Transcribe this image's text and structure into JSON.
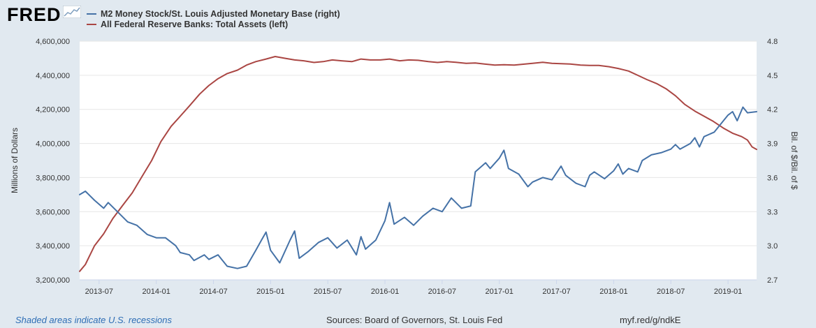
{
  "brand": {
    "logo_text": "FRED"
  },
  "legend": [
    {
      "label": "M2 Money Stock/St. Louis Adjusted Monetary Base (right)",
      "color": "#4572a7"
    },
    {
      "label": "All Federal Reserve Banks: Total Assets (left)",
      "color": "#aa4643"
    }
  ],
  "footer": {
    "recession_note": "Shaded areas indicate U.S. recessions",
    "sources": "Sources: Board of Governors, St. Louis Fed",
    "link": "myf.red/g/ndkE"
  },
  "chart_data": {
    "type": "line",
    "title": "",
    "ylabel_left": "Millions of Dollars",
    "ylabel_right": "Bil. of $/Bil. of $",
    "ylim_left": [
      3200000,
      4600000
    ],
    "ylim_right": [
      2.7,
      4.8
    ],
    "left_ticks": [
      "3,200,000",
      "3,400,000",
      "3,600,000",
      "3,800,000",
      "4,000,000",
      "4,200,000",
      "4,400,000",
      "4,600,000"
    ],
    "left_tick_values": [
      3200000,
      3400000,
      3600000,
      3800000,
      4000000,
      4200000,
      4400000,
      4600000
    ],
    "right_ticks": [
      "2.7",
      "3.0",
      "3.3",
      "3.6",
      "3.9",
      "4.2",
      "4.5",
      "4.8"
    ],
    "right_tick_values": [
      2.7,
      3.0,
      3.3,
      3.6,
      3.9,
      4.2,
      4.5,
      4.8
    ],
    "xlim": [
      2013.33,
      2019.25
    ],
    "x_ticks": [
      "2013-07",
      "2014-01",
      "2014-07",
      "2015-01",
      "2015-07",
      "2016-01",
      "2016-07",
      "2017-01",
      "2017-07",
      "2018-01",
      "2018-07",
      "2019-01"
    ],
    "x_tick_values": [
      2013.5,
      2014.0,
      2014.5,
      2015.0,
      2015.5,
      2016.0,
      2016.5,
      2017.0,
      2017.5,
      2018.0,
      2018.5,
      2019.0
    ],
    "series": [
      {
        "name": "All Federal Reserve Banks: Total Assets (left)",
        "axis": "left",
        "color": "#aa4643",
        "points": [
          [
            2013.33,
            3250000
          ],
          [
            2013.38,
            3290000
          ],
          [
            2013.46,
            3400000
          ],
          [
            2013.54,
            3470000
          ],
          [
            2013.62,
            3560000
          ],
          [
            2013.71,
            3640000
          ],
          [
            2013.79,
            3710000
          ],
          [
            2013.87,
            3800000
          ],
          [
            2013.96,
            3900000
          ],
          [
            2014.04,
            4010000
          ],
          [
            2014.13,
            4100000
          ],
          [
            2014.21,
            4160000
          ],
          [
            2014.29,
            4220000
          ],
          [
            2014.38,
            4290000
          ],
          [
            2014.46,
            4340000
          ],
          [
            2014.54,
            4380000
          ],
          [
            2014.62,
            4410000
          ],
          [
            2014.71,
            4430000
          ],
          [
            2014.79,
            4460000
          ],
          [
            2014.87,
            4480000
          ],
          [
            2014.96,
            4495000
          ],
          [
            2015.04,
            4510000
          ],
          [
            2015.12,
            4500000
          ],
          [
            2015.21,
            4490000
          ],
          [
            2015.29,
            4485000
          ],
          [
            2015.38,
            4475000
          ],
          [
            2015.46,
            4480000
          ],
          [
            2015.54,
            4490000
          ],
          [
            2015.62,
            4485000
          ],
          [
            2015.71,
            4480000
          ],
          [
            2015.79,
            4495000
          ],
          [
            2015.87,
            4490000
          ],
          [
            2015.96,
            4490000
          ],
          [
            2016.04,
            4495000
          ],
          [
            2016.13,
            4485000
          ],
          [
            2016.21,
            4490000
          ],
          [
            2016.29,
            4488000
          ],
          [
            2016.38,
            4480000
          ],
          [
            2016.46,
            4475000
          ],
          [
            2016.54,
            4480000
          ],
          [
            2016.62,
            4476000
          ],
          [
            2016.71,
            4470000
          ],
          [
            2016.79,
            4472000
          ],
          [
            2016.87,
            4466000
          ],
          [
            2016.96,
            4460000
          ],
          [
            2017.04,
            4462000
          ],
          [
            2017.13,
            4460000
          ],
          [
            2017.21,
            4465000
          ],
          [
            2017.29,
            4470000
          ],
          [
            2017.38,
            4476000
          ],
          [
            2017.46,
            4470000
          ],
          [
            2017.54,
            4468000
          ],
          [
            2017.62,
            4466000
          ],
          [
            2017.71,
            4460000
          ],
          [
            2017.79,
            4458000
          ],
          [
            2017.87,
            4458000
          ],
          [
            2017.96,
            4450000
          ],
          [
            2018.04,
            4440000
          ],
          [
            2018.13,
            4425000
          ],
          [
            2018.21,
            4400000
          ],
          [
            2018.29,
            4375000
          ],
          [
            2018.38,
            4350000
          ],
          [
            2018.46,
            4320000
          ],
          [
            2018.54,
            4280000
          ],
          [
            2018.62,
            4230000
          ],
          [
            2018.71,
            4190000
          ],
          [
            2018.79,
            4160000
          ],
          [
            2018.87,
            4130000
          ],
          [
            2018.96,
            4090000
          ],
          [
            2019.04,
            4060000
          ],
          [
            2019.12,
            4040000
          ],
          [
            2019.17,
            4020000
          ],
          [
            2019.21,
            3980000
          ],
          [
            2019.25,
            3965000
          ]
        ]
      },
      {
        "name": "M2 Money Stock/St. Louis Adjusted Monetary Base (right)",
        "axis": "right",
        "color": "#4572a7",
        "points": [
          [
            2013.33,
            3.45
          ],
          [
            2013.38,
            3.48
          ],
          [
            2013.46,
            3.4
          ],
          [
            2013.54,
            3.33
          ],
          [
            2013.58,
            3.38
          ],
          [
            2013.67,
            3.29
          ],
          [
            2013.75,
            3.21
          ],
          [
            2013.83,
            3.18
          ],
          [
            2013.92,
            3.1
          ],
          [
            2014.0,
            3.07
          ],
          [
            2014.08,
            3.07
          ],
          [
            2014.17,
            3.0
          ],
          [
            2014.21,
            2.94
          ],
          [
            2014.29,
            2.92
          ],
          [
            2014.33,
            2.87
          ],
          [
            2014.42,
            2.92
          ],
          [
            2014.46,
            2.88
          ],
          [
            2014.54,
            2.92
          ],
          [
            2014.62,
            2.82
          ],
          [
            2014.71,
            2.8
          ],
          [
            2014.79,
            2.82
          ],
          [
            2014.87,
            2.96
          ],
          [
            2014.92,
            3.05
          ],
          [
            2014.96,
            3.12
          ],
          [
            2015.0,
            2.96
          ],
          [
            2015.08,
            2.85
          ],
          [
            2015.17,
            3.05
          ],
          [
            2015.21,
            3.13
          ],
          [
            2015.25,
            2.89
          ],
          [
            2015.33,
            2.95
          ],
          [
            2015.42,
            3.03
          ],
          [
            2015.5,
            3.07
          ],
          [
            2015.58,
            2.98
          ],
          [
            2015.67,
            3.05
          ],
          [
            2015.75,
            2.92
          ],
          [
            2015.79,
            3.08
          ],
          [
            2015.83,
            2.97
          ],
          [
            2015.92,
            3.05
          ],
          [
            2016.0,
            3.22
          ],
          [
            2016.04,
            3.38
          ],
          [
            2016.08,
            3.19
          ],
          [
            2016.17,
            3.25
          ],
          [
            2016.25,
            3.18
          ],
          [
            2016.33,
            3.26
          ],
          [
            2016.42,
            3.33
          ],
          [
            2016.5,
            3.3
          ],
          [
            2016.58,
            3.42
          ],
          [
            2016.67,
            3.33
          ],
          [
            2016.75,
            3.35
          ],
          [
            2016.79,
            3.65
          ],
          [
            2016.88,
            3.73
          ],
          [
            2016.92,
            3.68
          ],
          [
            2017.0,
            3.77
          ],
          [
            2017.04,
            3.84
          ],
          [
            2017.08,
            3.68
          ],
          [
            2017.17,
            3.63
          ],
          [
            2017.25,
            3.52
          ],
          [
            2017.29,
            3.56
          ],
          [
            2017.38,
            3.6
          ],
          [
            2017.46,
            3.58
          ],
          [
            2017.54,
            3.7
          ],
          [
            2017.58,
            3.62
          ],
          [
            2017.67,
            3.55
          ],
          [
            2017.75,
            3.52
          ],
          [
            2017.79,
            3.62
          ],
          [
            2017.83,
            3.65
          ],
          [
            2017.92,
            3.59
          ],
          [
            2018.0,
            3.66
          ],
          [
            2018.04,
            3.72
          ],
          [
            2018.08,
            3.63
          ],
          [
            2018.13,
            3.68
          ],
          [
            2018.21,
            3.65
          ],
          [
            2018.25,
            3.75
          ],
          [
            2018.33,
            3.8
          ],
          [
            2018.42,
            3.82
          ],
          [
            2018.5,
            3.85
          ],
          [
            2018.54,
            3.89
          ],
          [
            2018.58,
            3.85
          ],
          [
            2018.67,
            3.9
          ],
          [
            2018.71,
            3.95
          ],
          [
            2018.75,
            3.87
          ],
          [
            2018.79,
            3.96
          ],
          [
            2018.88,
            4.0
          ],
          [
            2018.96,
            4.1
          ],
          [
            2019.0,
            4.15
          ],
          [
            2019.04,
            4.18
          ],
          [
            2019.08,
            4.1
          ],
          [
            2019.13,
            4.22
          ],
          [
            2019.17,
            4.17
          ],
          [
            2019.25,
            4.18
          ]
        ]
      }
    ]
  }
}
